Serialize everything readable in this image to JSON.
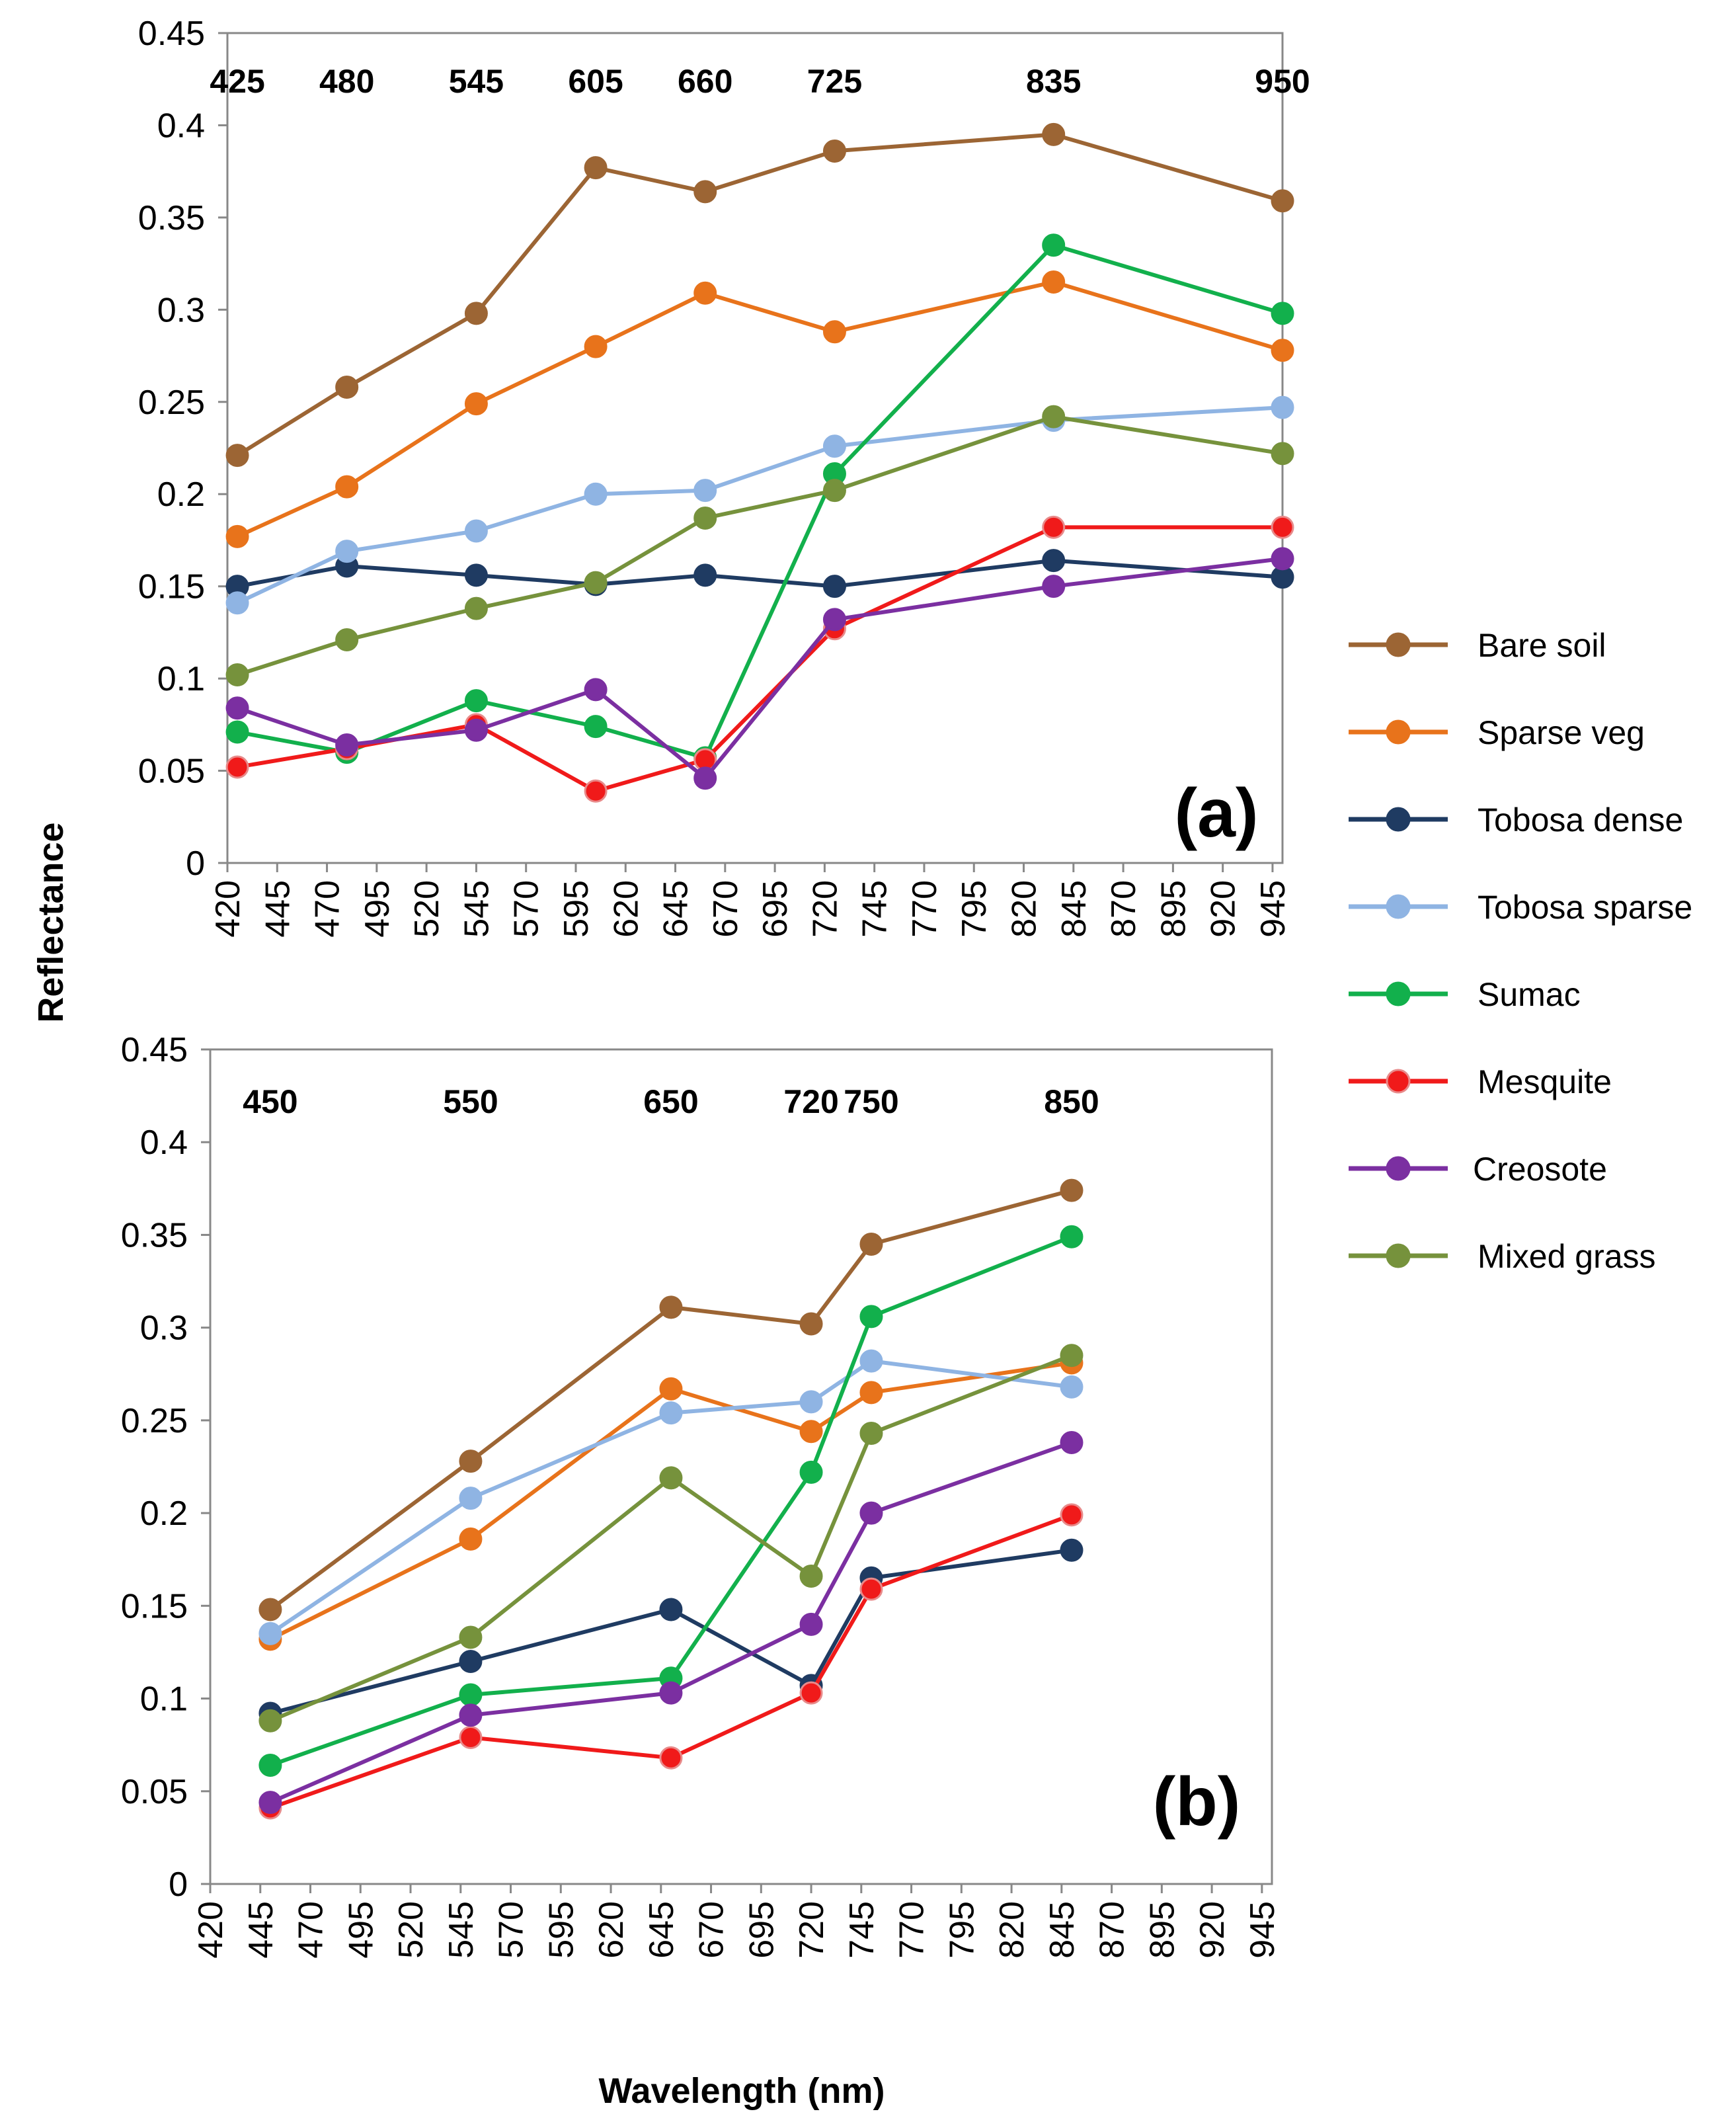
{
  "chart_data": [
    {
      "type": "line",
      "panel_label": "(a)",
      "ylabel": "Reflectance",
      "xlabel": "",
      "ylim": [
        0,
        0.45
      ],
      "y_ticks": [
        "0",
        "0.05",
        "0.1",
        "0.15",
        "0.2",
        "0.25",
        "0.3",
        "0.35",
        "0.4",
        "0.45"
      ],
      "x_ticks": [
        "420",
        "445",
        "470",
        "495",
        "520",
        "545",
        "570",
        "595",
        "620",
        "645",
        "670",
        "695",
        "720",
        "745",
        "770",
        "795",
        "820",
        "845",
        "870",
        "895",
        "920",
        "945"
      ],
      "band_labels": [
        "425",
        "480",
        "545",
        "605",
        "660",
        "725",
        "835",
        "950"
      ],
      "x": [
        425,
        480,
        545,
        605,
        660,
        725,
        835,
        950
      ],
      "series": [
        {
          "name": "Bare soil",
          "color": "#9C6534",
          "values": [
            0.221,
            0.258,
            0.298,
            0.377,
            0.364,
            0.386,
            0.395,
            0.359
          ]
        },
        {
          "name": "Sparse veg",
          "color": "#E8731B",
          "values": [
            0.177,
            0.204,
            0.249,
            0.28,
            0.309,
            0.288,
            0.315,
            0.278
          ]
        },
        {
          "name": "Tobosa dense",
          "color": "#1F3B62",
          "values": [
            0.15,
            0.161,
            0.156,
            0.151,
            0.156,
            0.15,
            0.164,
            0.155
          ]
        },
        {
          "name": "Tobosa sparse",
          "color": "#8FB4E3",
          "values": [
            0.141,
            0.169,
            0.18,
            0.2,
            0.202,
            0.226,
            0.24,
            0.247
          ]
        },
        {
          "name": "Sumac",
          "color": "#12B04C",
          "values": [
            0.071,
            0.06,
            0.088,
            0.074,
            0.057,
            0.211,
            0.335,
            0.298
          ]
        },
        {
          "name": "Mesquite",
          "color": "#F01A1A",
          "values": [
            0.052,
            0.062,
            0.075,
            0.039,
            0.056,
            0.127,
            0.182,
            0.182
          ]
        },
        {
          "name": "Creosote",
          "color": "#7B2FA1",
          "values": [
            0.084,
            0.064,
            0.072,
            0.094,
            0.046,
            0.132,
            0.15,
            0.165
          ]
        },
        {
          "name": "Mixed grass",
          "color": "#76923C",
          "values": [
            0.102,
            0.121,
            0.138,
            0.152,
            0.187,
            0.202,
            0.242,
            0.222
          ]
        }
      ]
    },
    {
      "type": "line",
      "panel_label": "(b)",
      "ylabel": "Reflectance",
      "xlabel": "Wavelength (nm)",
      "ylim": [
        0,
        0.45
      ],
      "y_ticks": [
        "0",
        "0.05",
        "0.1",
        "0.15",
        "0.2",
        "0.25",
        "0.3",
        "0.35",
        "0.4",
        "0.45"
      ],
      "x_ticks": [
        "420",
        "445",
        "470",
        "495",
        "520",
        "545",
        "570",
        "595",
        "620",
        "645",
        "670",
        "695",
        "720",
        "745",
        "770",
        "795",
        "820",
        "845",
        "870",
        "895",
        "920",
        "945"
      ],
      "band_labels": [
        "450",
        "550",
        "650",
        "720",
        "750",
        "850"
      ],
      "x": [
        450,
        550,
        650,
        720,
        750,
        850
      ],
      "series": [
        {
          "name": "Bare soil",
          "color": "#9C6534",
          "values": [
            0.148,
            0.228,
            0.311,
            0.302,
            0.345,
            0.374
          ]
        },
        {
          "name": "Sparse veg",
          "color": "#E8731B",
          "values": [
            0.132,
            0.186,
            0.267,
            0.244,
            0.265,
            0.281
          ]
        },
        {
          "name": "Tobosa dense",
          "color": "#1F3B62",
          "values": [
            0.092,
            0.12,
            0.148,
            0.107,
            0.165,
            0.18
          ]
        },
        {
          "name": "Tobosa sparse",
          "color": "#8FB4E3",
          "values": [
            0.135,
            0.208,
            0.254,
            0.26,
            0.282,
            0.268
          ]
        },
        {
          "name": "Sumac",
          "color": "#12B04C",
          "values": [
            0.064,
            0.102,
            0.111,
            0.222,
            0.306,
            0.349
          ]
        },
        {
          "name": "Mesquite",
          "color": "#F01A1A",
          "values": [
            0.041,
            0.079,
            0.068,
            0.103,
            0.159,
            0.199
          ]
        },
        {
          "name": "Creosote",
          "color": "#7B2FA1",
          "values": [
            0.044,
            0.091,
            0.103,
            0.14,
            0.2,
            0.238
          ]
        },
        {
          "name": "Mixed grass",
          "color": "#76923C",
          "values": [
            0.088,
            0.133,
            0.219,
            0.166,
            0.243,
            0.285
          ]
        }
      ]
    }
  ],
  "legend": [
    "Bare soil",
    "Sparse veg",
    "Tobosa dense",
    "Tobosa sparse",
    "Sumac",
    "Mesquite",
    "Creosote",
    "Mixed grass"
  ]
}
